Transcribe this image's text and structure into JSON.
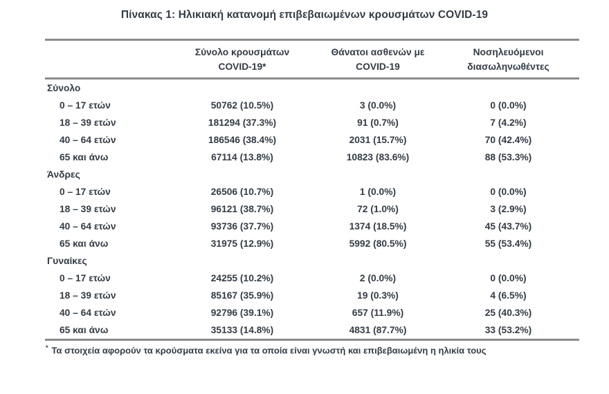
{
  "title": "Πίνακας 1: Ηλικιακή κατανομή επιβεβαιωμένων κρουσμάτων COVID-19",
  "table": {
    "headers": {
      "cases": "Σύνολο κρουσμάτων\nCOVID-19*",
      "deaths": "Θάνατοι ασθενών με\nCOVID-19",
      "intubated": "Νοσηλευόμενοι\nδιασωληνωθέντες"
    },
    "sections": [
      {
        "label": "Σύνολο",
        "rows": [
          {
            "label": "0 – 17 ετών",
            "cases": "50762 (10.5%)",
            "deaths": "3 (0.0%)",
            "intubated": "0 (0.0%)"
          },
          {
            "label": "18 – 39 ετών",
            "cases": "181294 (37.3%)",
            "deaths": "91 (0.7%)",
            "intubated": "7 (4.2%)"
          },
          {
            "label": "40 – 64 ετών",
            "cases": "186546 (38.4%)",
            "deaths": "2031 (15.7%)",
            "intubated": "70 (42.4%)"
          },
          {
            "label": "65 και άνω",
            "cases": "67114 (13.8%)",
            "deaths": "10823 (83.6%)",
            "intubated": "88 (53.3%)"
          }
        ]
      },
      {
        "label": "Άνδρες",
        "rows": [
          {
            "label": "0 – 17 ετών",
            "cases": "26506 (10.7%)",
            "deaths": "1 (0.0%)",
            "intubated": "0 (0.0%)"
          },
          {
            "label": "18 – 39 ετών",
            "cases": "96121 (38.7%)",
            "deaths": "72 (1.0%)",
            "intubated": "3 (2.9%)"
          },
          {
            "label": "40 – 64 ετών",
            "cases": "93736 (37.7%)",
            "deaths": "1374 (18.5%)",
            "intubated": "45 (43.7%)"
          },
          {
            "label": "65 και άνω",
            "cases": "31975 (12.9%)",
            "deaths": "5992 (80.5%)",
            "intubated": "55 (53.4%)"
          }
        ]
      },
      {
        "label": "Γυναίκες",
        "rows": [
          {
            "label": "0 – 17 ετών",
            "cases": "24255 (10.2%)",
            "deaths": "2 (0.0%)",
            "intubated": "0 (0.0%)"
          },
          {
            "label": "18 – 39 ετών",
            "cases": "85167 (35.9%)",
            "deaths": "19 (0.3%)",
            "intubated": "4 (6.5%)"
          },
          {
            "label": "40 – 64 ετών",
            "cases": "92796 (39.1%)",
            "deaths": "657 (11.9%)",
            "intubated": "25 (40.3%)"
          },
          {
            "label": "65 και άνω",
            "cases": "35133 (14.8%)",
            "deaths": "4831 (87.7%)",
            "intubated": "33 (53.2%)"
          }
        ]
      }
    ]
  },
  "footnote": {
    "marker": "*",
    "text": "Τα στοιχεία αφορούν τα κρούσματα εκείνα για τα οποία είναι γνωστή και επιβεβαιωμένη η ηλικία τους"
  },
  "colors": {
    "text": "#333b44",
    "rule": "#8b8b8b",
    "background": "#ffffff"
  }
}
